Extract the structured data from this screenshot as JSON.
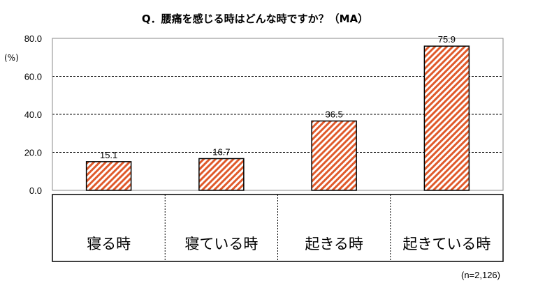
{
  "chart_data": {
    "type": "bar",
    "title": "Q．腰痛を感じる時はどんな時ですか？（MA）",
    "ylabel": "(%)",
    "xlabel": "",
    "categories": [
      "寝る時",
      "寝ている時",
      "起きる時",
      "起きている時"
    ],
    "values": [
      15.1,
      16.7,
      36.5,
      75.9
    ],
    "value_labels": [
      "15.1",
      "16.7",
      "36.5",
      "75.9"
    ],
    "ylim": [
      0,
      80
    ],
    "yticks": [
      0,
      20,
      40,
      60,
      80
    ],
    "ytick_labels": [
      "0.0",
      "20.0",
      "40.0",
      "60.0",
      "80.0"
    ],
    "grid": true,
    "bar_color": "#e05a2b",
    "bar_pattern": "diagonal-hatch",
    "note": "(n=2,126)"
  }
}
